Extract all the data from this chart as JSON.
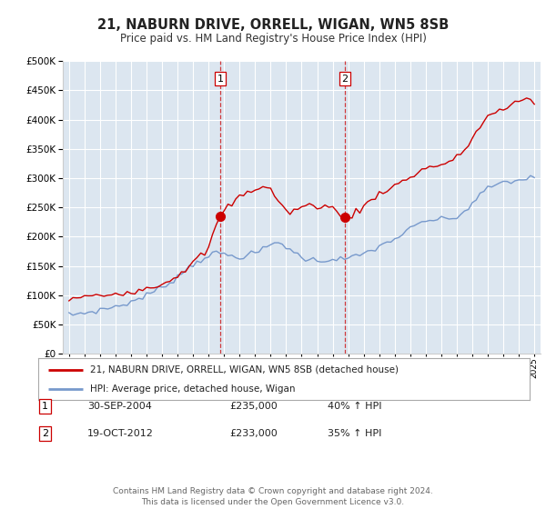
{
  "title": "21, NABURN DRIVE, ORRELL, WIGAN, WN5 8SB",
  "subtitle": "Price paid vs. HM Land Registry's House Price Index (HPI)",
  "background_color": "#ffffff",
  "plot_bg_color": "#dce6f0",
  "grid_color": "#ffffff",
  "sale1_date": "30-SEP-2004",
  "sale1_price": 235000,
  "sale1_hpi": "40% ↑ HPI",
  "sale2_date": "19-OCT-2012",
  "sale2_price": 233000,
  "sale2_hpi": "35% ↑ HPI",
  "legend_line1": "21, NABURN DRIVE, ORRELL, WIGAN, WN5 8SB (detached house)",
  "legend_line2": "HPI: Average price, detached house, Wigan",
  "footer": "Contains HM Land Registry data © Crown copyright and database right 2024.\nThis data is licensed under the Open Government Licence v3.0.",
  "red_line_color": "#cc0000",
  "blue_line_color": "#7799cc",
  "vline_color": "#cc0000",
  "ylim": [
    0,
    500000
  ],
  "yticks": [
    0,
    50000,
    100000,
    150000,
    200000,
    250000,
    300000,
    350000,
    400000,
    450000,
    500000
  ],
  "xmin": 1994.6,
  "xmax": 2025.4,
  "sale1_x": 2004.75,
  "sale2_x": 2012.79,
  "hpi_years": [
    1995,
    1995.25,
    1995.5,
    1995.75,
    1996,
    1996.25,
    1996.5,
    1996.75,
    1997,
    1997.25,
    1997.5,
    1997.75,
    1998,
    1998.25,
    1998.5,
    1998.75,
    1999,
    1999.25,
    1999.5,
    1999.75,
    2000,
    2000.25,
    2000.5,
    2000.75,
    2001,
    2001.25,
    2001.5,
    2001.75,
    2002,
    2002.25,
    2002.5,
    2002.75,
    2003,
    2003.25,
    2003.5,
    2003.75,
    2004,
    2004.25,
    2004.5,
    2004.75,
    2005,
    2005.25,
    2005.5,
    2005.75,
    2006,
    2006.25,
    2006.5,
    2006.75,
    2007,
    2007.25,
    2007.5,
    2007.75,
    2008,
    2008.25,
    2008.5,
    2008.75,
    2009,
    2009.25,
    2009.5,
    2009.75,
    2010,
    2010.25,
    2010.5,
    2010.75,
    2011,
    2011.25,
    2011.5,
    2011.75,
    2012,
    2012.25,
    2012.5,
    2012.75,
    2013,
    2013.25,
    2013.5,
    2013.75,
    2014,
    2014.25,
    2014.5,
    2014.75,
    2015,
    2015.25,
    2015.5,
    2015.75,
    2016,
    2016.25,
    2016.5,
    2016.75,
    2017,
    2017.25,
    2017.5,
    2017.75,
    2018,
    2018.25,
    2018.5,
    2018.75,
    2019,
    2019.25,
    2019.5,
    2019.75,
    2020,
    2020.25,
    2020.5,
    2020.75,
    2021,
    2021.25,
    2021.5,
    2021.75,
    2022,
    2022.25,
    2022.5,
    2022.75,
    2023,
    2023.25,
    2023.5,
    2023.75,
    2024,
    2024.25,
    2024.5,
    2024.75,
    2025
  ],
  "hpi_values": [
    66000,
    67000,
    68000,
    69000,
    70000,
    71000,
    72000,
    73000,
    75000,
    76000,
    78000,
    79000,
    81000,
    82000,
    84000,
    86000,
    89000,
    91000,
    94000,
    97000,
    100000,
    103000,
    107000,
    110000,
    114000,
    118000,
    122000,
    127000,
    132000,
    137000,
    143000,
    148000,
    153000,
    157000,
    161000,
    165000,
    168000,
    170000,
    171000,
    172000,
    170000,
    168000,
    167000,
    166000,
    166000,
    167000,
    168000,
    170000,
    172000,
    175000,
    178000,
    182000,
    186000,
    189000,
    190000,
    188000,
    183000,
    178000,
    173000,
    169000,
    165000,
    163000,
    161000,
    160000,
    159000,
    159000,
    160000,
    161000,
    162000,
    162000,
    162000,
    162000,
    163000,
    164000,
    166000,
    168000,
    171000,
    174000,
    177000,
    180000,
    183000,
    186000,
    190000,
    193000,
    197000,
    200000,
    204000,
    208000,
    213000,
    217000,
    221000,
    224000,
    226000,
    228000,
    229000,
    229000,
    229000,
    230000,
    231000,
    232000,
    233000,
    237000,
    243000,
    250000,
    257000,
    264000,
    271000,
    277000,
    282000,
    286000,
    289000,
    291000,
    292000,
    293000,
    294000,
    295000,
    297000,
    298000,
    299000,
    300000,
    302000
  ],
  "red_years": [
    1995,
    1995.25,
    1995.5,
    1995.75,
    1996,
    1996.25,
    1996.5,
    1996.75,
    1997,
    1997.25,
    1997.5,
    1997.75,
    1998,
    1998.25,
    1998.5,
    1998.75,
    1999,
    1999.25,
    1999.5,
    1999.75,
    2000,
    2000.25,
    2000.5,
    2000.75,
    2001,
    2001.25,
    2001.5,
    2001.75,
    2002,
    2002.25,
    2002.5,
    2002.75,
    2003,
    2003.25,
    2003.5,
    2003.75,
    2004,
    2004.25,
    2004.5,
    2004.75,
    2005,
    2005.25,
    2005.5,
    2005.75,
    2006,
    2006.25,
    2006.5,
    2006.75,
    2007,
    2007.25,
    2007.5,
    2007.75,
    2008,
    2008.25,
    2008.5,
    2008.75,
    2009,
    2009.25,
    2009.5,
    2009.75,
    2010,
    2010.25,
    2010.5,
    2010.75,
    2011,
    2011.25,
    2011.5,
    2011.75,
    2012,
    2012.25,
    2012.5,
    2012.79,
    2013,
    2013.25,
    2013.5,
    2013.75,
    2014,
    2014.25,
    2014.5,
    2014.75,
    2015,
    2015.25,
    2015.5,
    2015.75,
    2016,
    2016.25,
    2016.5,
    2016.75,
    2017,
    2017.25,
    2017.5,
    2017.75,
    2018,
    2018.25,
    2018.5,
    2018.75,
    2019,
    2019.25,
    2019.5,
    2019.75,
    2020,
    2020.25,
    2020.5,
    2020.75,
    2021,
    2021.25,
    2021.5,
    2021.75,
    2022,
    2022.25,
    2022.5,
    2022.75,
    2023,
    2023.25,
    2023.5,
    2023.75,
    2024,
    2024.25,
    2024.5,
    2024.75,
    2025
  ],
  "red_values": [
    93000,
    94000,
    95000,
    96000,
    97000,
    97500,
    98000,
    98500,
    99000,
    100000,
    101000,
    102000,
    103000,
    104000,
    105000,
    106000,
    107000,
    108000,
    109000,
    110000,
    112000,
    114000,
    116000,
    118000,
    120000,
    123000,
    126000,
    130000,
    135000,
    140000,
    145000,
    150000,
    156000,
    161000,
    167000,
    173000,
    180000,
    200000,
    218000,
    235000,
    243000,
    250000,
    257000,
    263000,
    268000,
    272000,
    276000,
    279000,
    282000,
    284000,
    285000,
    284000,
    280000,
    272000,
    261000,
    251000,
    244000,
    242000,
    245000,
    248000,
    250000,
    252000,
    253000,
    253000,
    253000,
    253000,
    252000,
    251000,
    248000,
    243000,
    237000,
    233000,
    235000,
    238000,
    242000,
    246000,
    251000,
    257000,
    263000,
    269000,
    274000,
    278000,
    281000,
    284000,
    287000,
    290000,
    294000,
    298000,
    302000,
    306000,
    310000,
    314000,
    317000,
    319000,
    321000,
    322000,
    323000,
    325000,
    327000,
    330000,
    335000,
    341000,
    349000,
    358000,
    368000,
    378000,
    388000,
    397000,
    405000,
    410000,
    413000,
    415000,
    416000,
    418000,
    422000,
    428000,
    432000,
    435000,
    436000,
    435000,
    432000
  ]
}
